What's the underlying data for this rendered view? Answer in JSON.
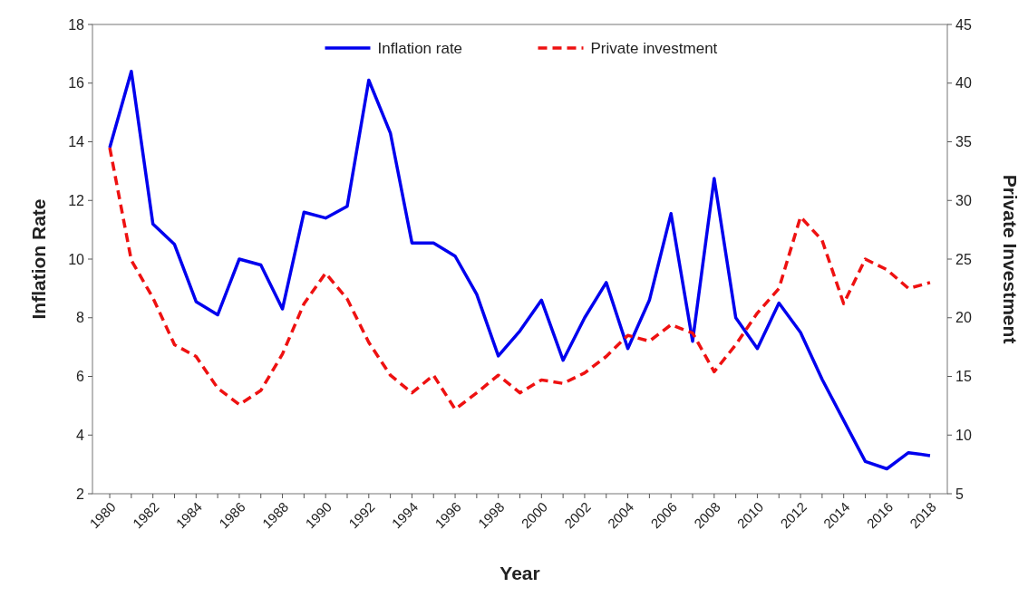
{
  "chart_data": {
    "type": "line",
    "xlabel": "Year",
    "ylabel": "Inflation Rate",
    "y2label": "Private Investment",
    "categories": [
      "1980",
      null,
      "1982",
      null,
      "1984",
      null,
      "1986",
      null,
      "1988",
      null,
      "1990",
      null,
      "1992",
      null,
      "1994",
      null,
      "1996",
      null,
      "1998",
      null,
      "2000",
      null,
      "2002",
      null,
      "2004",
      null,
      "2006",
      null,
      "2008",
      null,
      "2010",
      null,
      "2012",
      null,
      "2014",
      null,
      "2016",
      null,
      "2018"
    ],
    "series": [
      {
        "name": "Inflation rate",
        "color": "#0000ee",
        "line_style": "solid",
        "values": [
          13.8,
          16.4,
          11.2,
          10.5,
          8.55,
          8.1,
          10.0,
          9.8,
          8.3,
          11.6,
          11.4,
          11.8,
          16.1,
          14.3,
          10.55,
          10.55,
          10.1,
          8.8,
          6.7,
          7.55,
          8.6,
          6.55,
          8.0,
          9.2,
          6.95,
          8.6,
          11.55,
          7.2,
          12.75,
          8.0,
          6.95,
          8.5,
          7.5,
          5.9,
          4.5,
          3.1,
          2.85,
          3.4,
          3.3
        ]
      },
      {
        "name": "Private investment",
        "color": "#ee1111",
        "line_style": "dashed",
        "axis": "y2",
        "values": [
          34.5,
          24.9,
          21.7,
          17.7,
          16.7,
          14.0,
          12.6,
          13.8,
          16.9,
          21.2,
          23.8,
          21.6,
          17.9,
          15.1,
          13.6,
          15.1,
          12.2,
          13.6,
          15.1,
          13.6,
          14.7,
          14.4,
          15.3,
          16.7,
          18.5,
          18.0,
          19.4,
          18.7,
          15.4,
          17.7,
          20.4,
          22.5,
          28.6,
          26.6,
          21.2,
          25.0,
          24.1,
          22.5,
          23.0
        ]
      }
    ],
    "ylim": [
      2,
      18
    ],
    "yticks": [
      2,
      4,
      6,
      8,
      10,
      12,
      14,
      16,
      18
    ],
    "y2lim": [
      5,
      45
    ],
    "y2ticks": [
      5,
      10,
      15,
      20,
      25,
      30,
      35,
      40,
      45
    ],
    "legend": "top",
    "grid": false,
    "marker": "none"
  }
}
